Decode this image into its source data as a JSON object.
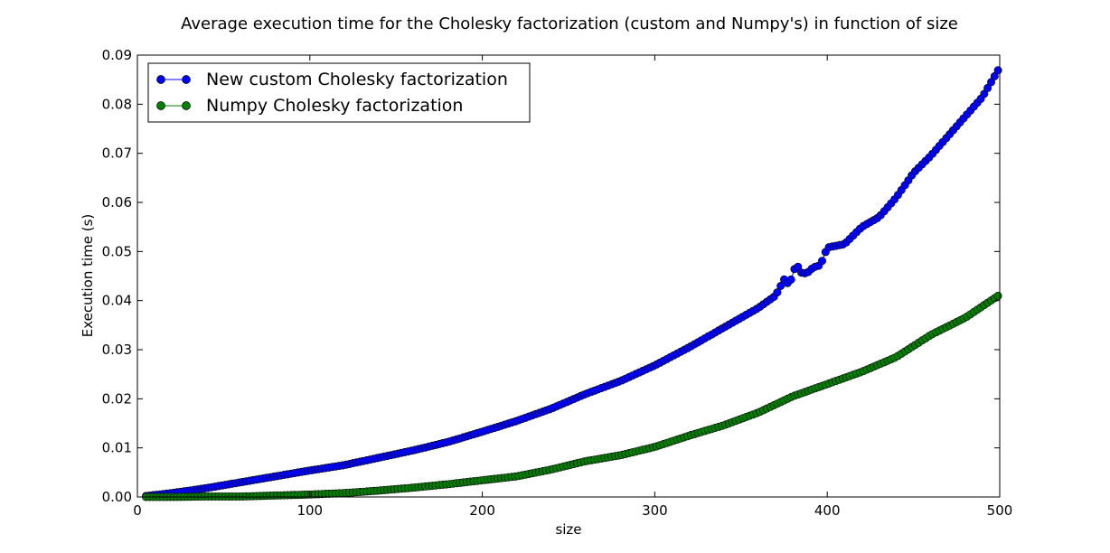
{
  "chart_data": {
    "type": "line",
    "title": "Average execution time for the Cholesky factorization (custom and Numpy's) in function of size",
    "xlabel": "size",
    "ylabel": "Execution time (s)",
    "xlim": [
      0,
      500
    ],
    "ylim": [
      0,
      0.09
    ],
    "xticks": [
      0,
      100,
      200,
      300,
      400,
      500
    ],
    "yticks": [
      0.0,
      0.01,
      0.02,
      0.03,
      0.04,
      0.05,
      0.06,
      0.07,
      0.08,
      0.09
    ],
    "xtick_labels": [
      "0",
      "100",
      "200",
      "300",
      "400",
      "500"
    ],
    "ytick_labels": [
      "0.00",
      "0.01",
      "0.02",
      "0.03",
      "0.04",
      "0.05",
      "0.06",
      "0.07",
      "0.08",
      "0.09"
    ],
    "grid": false,
    "legend_position": "top-left",
    "series": [
      {
        "name": "New custom Cholesky factorization",
        "color": "#0000ff",
        "marker": "circle",
        "x": [
          5,
          20,
          40,
          60,
          80,
          100,
          120,
          140,
          160,
          180,
          200,
          220,
          240,
          260,
          280,
          300,
          320,
          340,
          360,
          370,
          375,
          378,
          382,
          385,
          388,
          392,
          396,
          400,
          410,
          420,
          430,
          440,
          450,
          460,
          470,
          480,
          490,
          495,
          500
        ],
        "y": [
          0.0002,
          0.0008,
          0.0018,
          0.003,
          0.0042,
          0.0054,
          0.0065,
          0.008,
          0.0095,
          0.0112,
          0.0133,
          0.0155,
          0.018,
          0.021,
          0.0236,
          0.0268,
          0.0305,
          0.0345,
          0.0385,
          0.041,
          0.0443,
          0.0432,
          0.0475,
          0.0457,
          0.0455,
          0.0468,
          0.0472,
          0.0508,
          0.0515,
          0.055,
          0.057,
          0.061,
          0.066,
          0.0695,
          0.0735,
          0.0775,
          0.0815,
          0.0845,
          0.0875
        ]
      },
      {
        "name": "Numpy Cholesky factorization",
        "color": "#007f00",
        "marker": "circle",
        "x": [
          5,
          20,
          40,
          60,
          80,
          100,
          120,
          140,
          160,
          180,
          200,
          220,
          240,
          260,
          280,
          300,
          320,
          340,
          360,
          380,
          400,
          420,
          440,
          460,
          480,
          500
        ],
        "y": [
          0.0,
          0.0,
          0.0001,
          0.0001,
          0.0003,
          0.0005,
          0.0008,
          0.0013,
          0.0019,
          0.0026,
          0.0034,
          0.0042,
          0.0056,
          0.0073,
          0.0085,
          0.0102,
          0.0125,
          0.0146,
          0.0172,
          0.0205,
          0.023,
          0.0255,
          0.0285,
          0.033,
          0.0365,
          0.0412
        ]
      }
    ]
  }
}
